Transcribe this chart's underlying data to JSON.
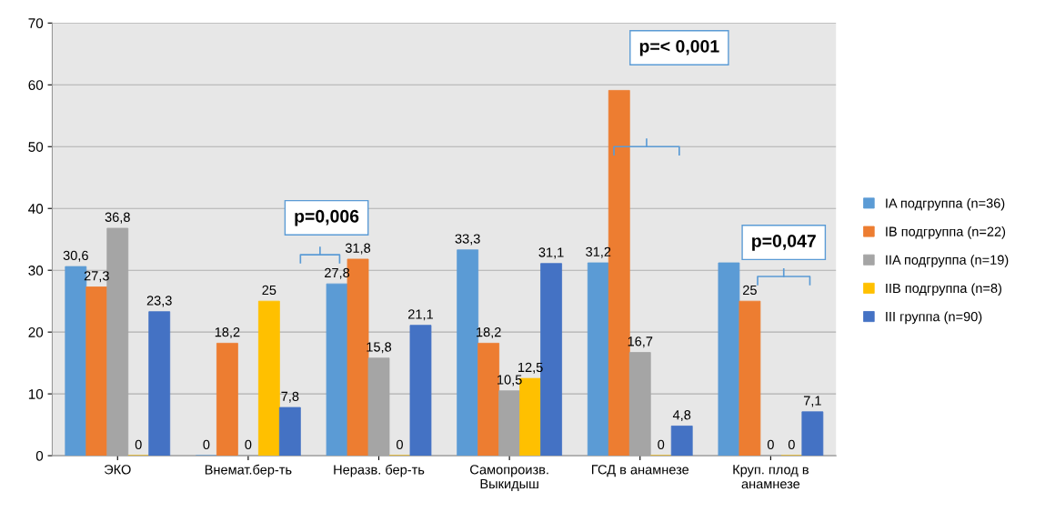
{
  "chart_data": {
    "type": "bar",
    "categories": [
      "ЭКО",
      "Внемат.бер-ть",
      "Неразв. бер-ть",
      "Самопроизв.\nВыкидыш",
      "ГСД в анамнезе",
      "Круп. плод в\nанамнезе"
    ],
    "series": [
      {
        "name": "IA подгруппа (n=36)",
        "color": "#5b9bd5",
        "values": [
          30.6,
          0,
          27.8,
          33.3,
          31.2,
          31.2
        ],
        "value_labels": [
          "30,6",
          "0",
          "27,8",
          "33,3",
          "31,2",
          null
        ]
      },
      {
        "name": "IB подгруппа (n=22)",
        "color": "#ed7d31",
        "values": [
          27.3,
          18.2,
          31.8,
          18.2,
          59.1,
          25
        ],
        "value_labels": [
          "27,3",
          "18,2",
          "31,8",
          "18,2",
          null,
          "25"
        ]
      },
      {
        "name": "IIA подгруппа (n=19)",
        "color": "#a5a5a5",
        "values": [
          36.8,
          0,
          15.8,
          10.5,
          16.7,
          0
        ],
        "value_labels": [
          "36,8",
          "0",
          "15,8",
          "10,5",
          "16,7",
          "0"
        ]
      },
      {
        "name": "IIB подгруппа (n=8)",
        "color": "#ffc000",
        "values": [
          0,
          25,
          0,
          12.5,
          0,
          0
        ],
        "value_labels": [
          "0",
          "25",
          "0",
          "12,5",
          "0",
          "0"
        ]
      },
      {
        "name": "III группа (n=90)",
        "color": "#4472c4",
        "values": [
          23.3,
          7.8,
          21.1,
          31.1,
          4.8,
          7.1
        ],
        "value_labels": [
          "23,3",
          "7,8",
          "21,1",
          "31,1",
          "4,8",
          "7,1"
        ]
      }
    ],
    "annotations": [
      "p=0,006",
      "p=< 0,001",
      "p=0,047"
    ],
    "ylim": [
      0,
      70
    ],
    "yticks": [
      0,
      10,
      20,
      30,
      40,
      50,
      60,
      70
    ],
    "grid": "y",
    "legend": "right"
  }
}
